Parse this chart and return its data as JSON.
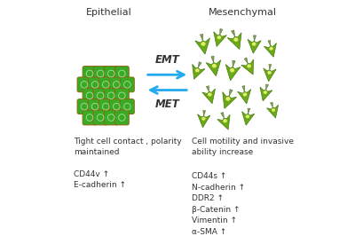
{
  "bg_color": "#ffffff",
  "title_left": "Epithelial",
  "title_right": "Mesenchymal",
  "arrow_top_label": "EMT",
  "arrow_bottom_label": "MET",
  "arrow_color": "#22aaee",
  "left_desc": "Tight cell contact , polarity\nmaintained",
  "left_markers": "CD44v ↑\nE-cadherin ↑",
  "right_desc": "Cell motility and invasive\nability increase",
  "right_markers": "CD44s ↑\nN-cadherin ↑\nDDR2 ↑\nβ-Catenin ↑\nVimentin ↑\nα-SMA ↑",
  "cell_green_main": "#3aaa22",
  "cell_green_light": "#66cc33",
  "cell_green_dark": "#227722",
  "cell_border": "#8B6914",
  "meso_dark": "#4a7a10",
  "meso_mid": "#6aaa18",
  "meso_light": "#aadd44",
  "meso_nucleus": "#ddee66",
  "meso_tail": "#889977"
}
